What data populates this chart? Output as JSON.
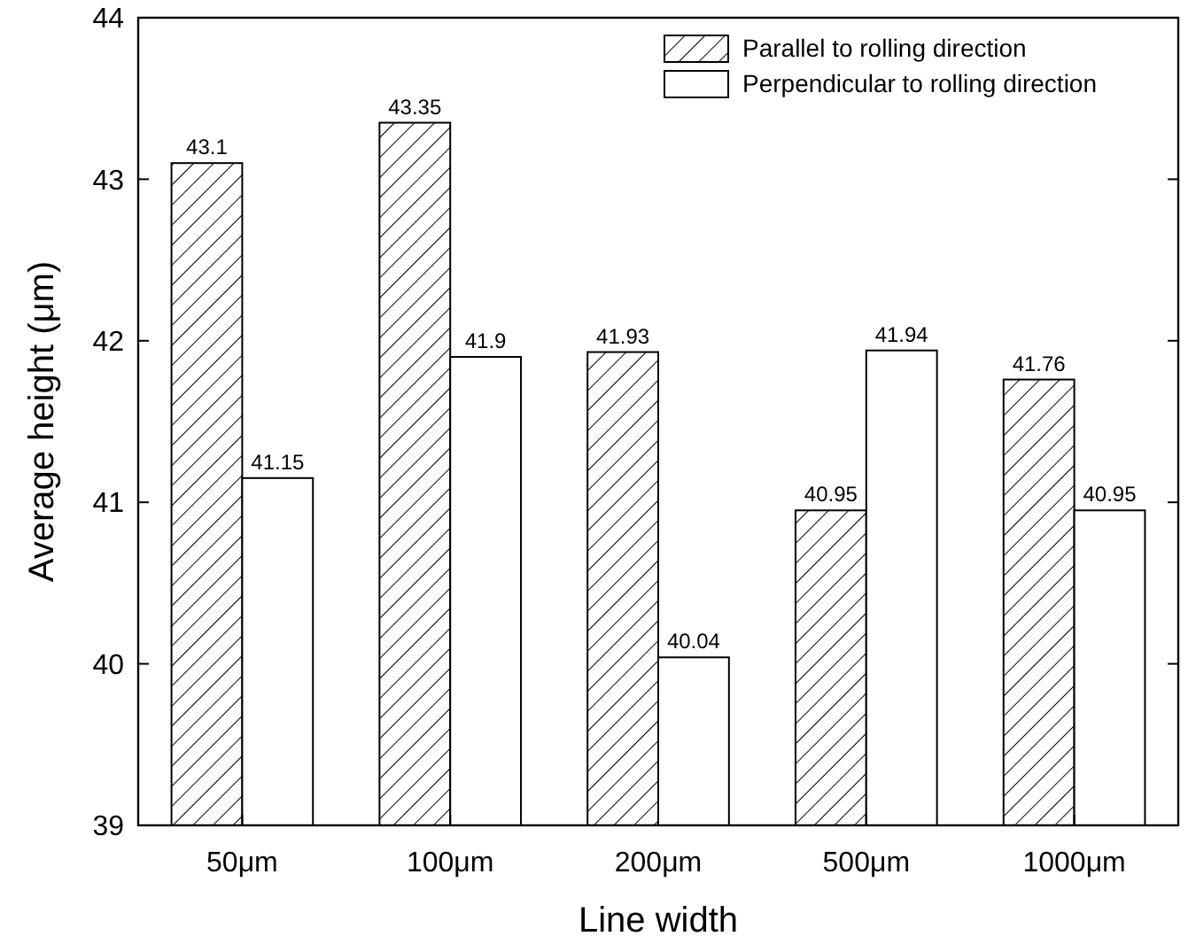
{
  "chart_data": {
    "type": "bar",
    "xlabel": "Line width",
    "ylabel": "Average height (μm)",
    "categories": [
      "50μm",
      "100μm",
      "200μm",
      "500μm",
      "1000μm"
    ],
    "series": [
      {
        "name": "Parallel to rolling direction",
        "color": "#000000",
        "values": [
          43.1,
          43.35,
          41.93,
          40.95,
          41.76
        ]
      },
      {
        "name": "Perpendicular to rolling direction",
        "color": "#ffffff",
        "values": [
          41.15,
          41.9,
          40.04,
          41.94,
          40.95
        ]
      }
    ],
    "ylim": [
      39,
      44
    ],
    "yticks": [
      39,
      40,
      41,
      42,
      43,
      44
    ],
    "data_labels": true,
    "legend": "top right",
    "grid": false
  }
}
